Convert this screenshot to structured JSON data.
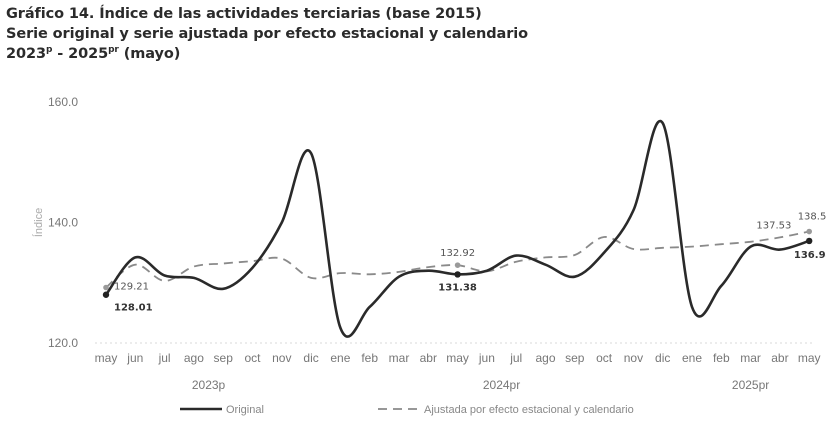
{
  "title": {
    "line1": "Gráfico 14. Índice de las actividades terciarias (base 2015)",
    "line2": "Serie original y serie ajustada por efecto estacional y calendario",
    "line3_a": "2023",
    "line3_sup1": "p",
    "line3_b": " - 2025",
    "line3_sup2": "pr",
    "line3_c": " (mayo)"
  },
  "chart_data": {
    "type": "line",
    "title": "Gráfico 14. Índice de las actividades terciarias (base 2015)",
    "subtitle": "Serie original y serie ajustada por efecto estacional y calendario",
    "ylabel": "Índice",
    "ylim": [
      120,
      160
    ],
    "yticks": [
      120,
      140,
      160
    ],
    "ytick_labels": [
      "120.0",
      "140.0",
      "160.0"
    ],
    "categories": [
      "may",
      "jun",
      "jul",
      "ago",
      "sep",
      "oct",
      "nov",
      "dic",
      "ene",
      "feb",
      "mar",
      "abr",
      "may",
      "jun",
      "jul",
      "ago",
      "sep",
      "oct",
      "nov",
      "dic",
      "ene",
      "feb",
      "mar",
      "abr",
      "may"
    ],
    "year_groups": [
      {
        "label": "2023p",
        "start": 0,
        "end": 7
      },
      {
        "label": "2024pr",
        "start": 8,
        "end": 19
      },
      {
        "label": "2025pr",
        "start": 20,
        "end": 24
      }
    ],
    "series": [
      {
        "name": "Original",
        "color": "#2a2a2a",
        "style": "solid",
        "values": [
          128.01,
          134.2,
          131.2,
          130.8,
          129.0,
          132.5,
          140.0,
          151.5,
          122.5,
          126.0,
          131.0,
          132.0,
          131.38,
          132.0,
          134.5,
          133.0,
          131.0,
          135.0,
          142.0,
          156.5,
          126.0,
          129.5,
          136.0,
          135.5,
          136.94
        ]
      },
      {
        "name": "Ajustada por efecto estacional y calendario",
        "color": "#8a8a8a",
        "style": "dashed",
        "values": [
          129.21,
          133.0,
          130.3,
          132.7,
          133.2,
          133.6,
          134.0,
          130.8,
          131.6,
          131.4,
          131.8,
          132.6,
          132.92,
          131.9,
          133.5,
          134.2,
          134.6,
          137.6,
          135.6,
          135.8,
          136.0,
          136.4,
          136.8,
          137.53,
          138.5
        ]
      }
    ],
    "data_labels": [
      {
        "series": 1,
        "index": 0,
        "text": "129.21"
      },
      {
        "series": 0,
        "index": 0,
        "text": "128.01"
      },
      {
        "series": 1,
        "index": 12,
        "text": "132.92"
      },
      {
        "series": 0,
        "index": 12,
        "text": "131.38"
      },
      {
        "series": 1,
        "index": 23,
        "text": "137.53"
      },
      {
        "series": 1,
        "index": 24,
        "text": "138.50"
      },
      {
        "series": 0,
        "index": 24,
        "text": "136.94"
      }
    ],
    "legend": {
      "placement": "bottom",
      "items": [
        "Original",
        "Ajustada por efecto estacional y calendario"
      ]
    },
    "grid": false
  }
}
